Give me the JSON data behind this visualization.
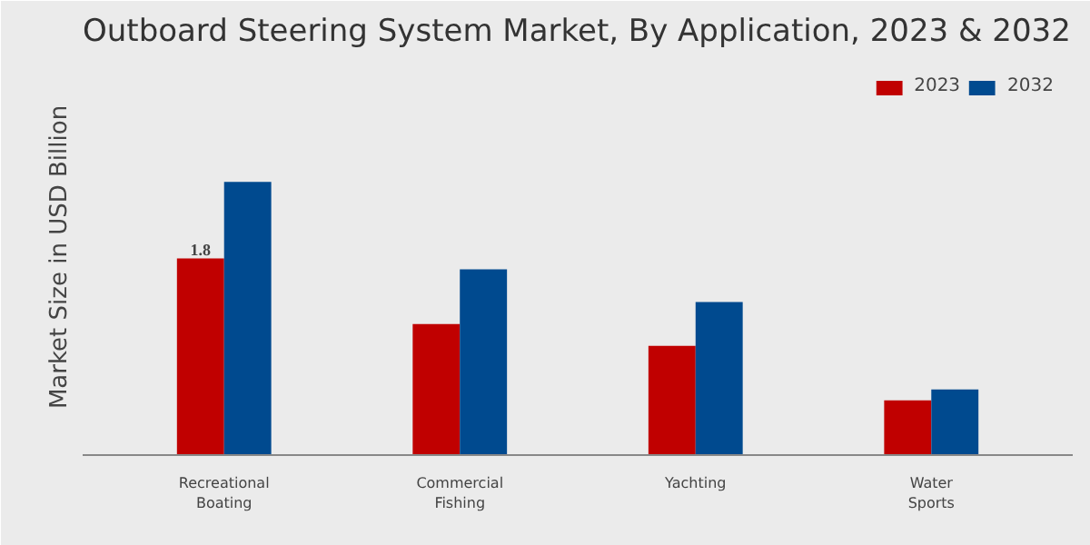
{
  "chart_data": {
    "type": "bar",
    "title": "Outboard Steering System Market, By Application, 2023 & 2032",
    "ylabel": "Market Size in USD Billion",
    "categories": [
      "Recreational\nBoating",
      "Commercial\nFishing",
      "Yachting",
      "Water\nSports"
    ],
    "series": [
      {
        "name": "2023",
        "color": "#c00000",
        "values": [
          1.8,
          1.2,
          1.0,
          0.5
        ],
        "value_labels": [
          "1.8",
          null,
          null,
          null
        ]
      },
      {
        "name": "2032",
        "color": "#004a8f",
        "values": [
          2.5,
          1.7,
          1.4,
          0.6
        ]
      }
    ],
    "legend": "top right",
    "grid": false
  }
}
